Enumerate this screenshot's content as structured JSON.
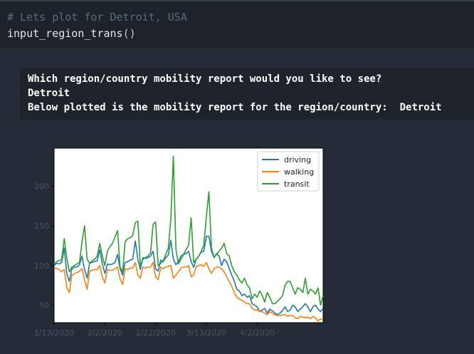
{
  "notebook": {
    "input_cell": {
      "comment": "# Lets plot for Detroit, USA",
      "function_name": "input_region_trans",
      "parens": "()"
    },
    "output": {
      "prompt": "Which region/country mobility report would you like to see?",
      "answer": "Detroit",
      "message": "Below plotted is the mobility report for the region/country:  Detroit"
    }
  },
  "chart_data": {
    "type": "line",
    "x_tick_labels": [
      "1/13/2020",
      "2/2/2020",
      "2/22/2020",
      "3/13/2020",
      "4/2/2020"
    ],
    "y_tick_labels": [
      "50",
      "100",
      "150",
      "200"
    ],
    "ylim": [
      28,
      248
    ],
    "x_start": "2020-01-13",
    "colors": {
      "driving": "#1f77b4",
      "walking": "#ff7f0e",
      "transit": "#2ca02c"
    },
    "legend_position": "top-right",
    "series": [
      {
        "name": "driving",
        "values": [
          100,
          103,
          102,
          104,
          122,
          90,
          80,
          96,
          98,
          98,
          101,
          112,
          95,
          84,
          103,
          104,
          105,
          106,
          120,
          102,
          90,
          102,
          101,
          102,
          104,
          114,
          96,
          88,
          104,
          105,
          107,
          108,
          131,
          108,
          95,
          110,
          109,
          110,
          112,
          118,
          96,
          93,
          107,
          105,
          110,
          113,
          132,
          108,
          101,
          105,
          112,
          114,
          115,
          118,
          105,
          98,
          108,
          112,
          117,
          118,
          137,
          137,
          118,
          110,
          115,
          112,
          100,
          108,
          105,
          96,
          88,
          80,
          70,
          68,
          62,
          64,
          60,
          62,
          52,
          50,
          48,
          42,
          44,
          46,
          40,
          45,
          43,
          40,
          38,
          40,
          43,
          48,
          42,
          44,
          50,
          48,
          42,
          45,
          48,
          52,
          48,
          42,
          48,
          50,
          45,
          42,
          46
        ]
      },
      {
        "name": "walking",
        "values": [
          98,
          96,
          95,
          92,
          95,
          72,
          66,
          88,
          90,
          91,
          93,
          96,
          82,
          70,
          93,
          94,
          95,
          95,
          100,
          86,
          78,
          95,
          94,
          94,
          96,
          98,
          83,
          76,
          96,
          95,
          97,
          97,
          104,
          88,
          84,
          98,
          97,
          98,
          98,
          104,
          86,
          82,
          98,
          96,
          98,
          99,
          100,
          84,
          88,
          92,
          97,
          98,
          98,
          100,
          86,
          88,
          99,
          100,
          101,
          99,
          104,
          96,
          90,
          96,
          98,
          98,
          96,
          92,
          86,
          80,
          74,
          66,
          60,
          58,
          56,
          54,
          52,
          52,
          46,
          44,
          44,
          42,
          42,
          40,
          38,
          42,
          40,
          38,
          37,
          37,
          38,
          38,
          36,
          37,
          37,
          34,
          33,
          36,
          35,
          34,
          35,
          33,
          36,
          34,
          30,
          33,
          31
        ]
      },
      {
        "name": "transit",
        "values": [
          102,
          105,
          106,
          108,
          134,
          110,
          92,
          98,
          100,
          102,
          104,
          130,
          150,
          108,
          103,
          106,
          108,
          112,
          128,
          112,
          100,
          118,
          124,
          128,
          136,
          144,
          98,
          92,
          130,
          134,
          135,
          138,
          154,
          156,
          100,
          108,
          110,
          112,
          116,
          152,
          155,
          100,
          103,
          106,
          114,
          122,
          158,
          238,
          120,
          102,
          108,
          114,
          120,
          126,
          160,
          104,
          108,
          112,
          118,
          126,
          162,
          193,
          122,
          110,
          114,
          118,
          122,
          128,
          115,
          112,
          100,
          92,
          88,
          82,
          78,
          84,
          76,
          72,
          58,
          64,
          60,
          68,
          62,
          54,
          66,
          60,
          52,
          52,
          55,
          58,
          62,
          75,
          80,
          80,
          72,
          64,
          72,
          70,
          66,
          84,
          64,
          70,
          68,
          64,
          72,
          50,
          62
        ]
      }
    ]
  }
}
